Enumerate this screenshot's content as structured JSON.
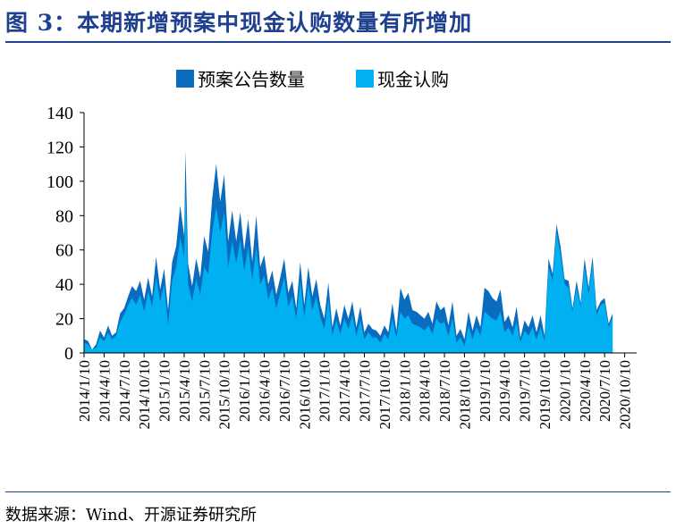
{
  "figure": {
    "title": "图 3：本期新增预案中现金认购数量有所增加",
    "source": "数据来源：Wind、开源证券研究所"
  },
  "colors": {
    "title_blue": "#1f3f8f",
    "series_plan": "#0a6cbf",
    "series_cash": "#00b0f0"
  },
  "chart_data": {
    "type": "area",
    "title": "",
    "xlabel": "",
    "ylabel": "",
    "ylim": [
      0,
      140
    ],
    "yticks": [
      0,
      20,
      40,
      60,
      80,
      100,
      120,
      140
    ],
    "grid": false,
    "legend_position": "top-center",
    "x_tick_labels": [
      "2014/1/10",
      "2014/4/10",
      "2014/7/10",
      "2014/10/10",
      "2015/1/10",
      "2015/4/10",
      "2015/7/10",
      "2015/10/10",
      "2016/1/10",
      "2016/4/10",
      "2016/7/10",
      "2016/10/10",
      "2017/1/10",
      "2017/4/10",
      "2017/7/10",
      "2017/10/10",
      "2018/1/10",
      "2018/4/10",
      "2018/7/10",
      "2018/10/10",
      "2019/1/10",
      "2019/4/10",
      "2019/7/10",
      "2019/10/10",
      "2020/1/10",
      "2020/4/10",
      "2020/7/10",
      "2020/10/10"
    ],
    "series": [
      {
        "name": "预案公告数量",
        "color": "#0a6cbf",
        "points": [
          [
            0,
            8
          ],
          [
            0.3,
            7
          ],
          [
            0.6,
            2
          ],
          [
            0.9,
            5
          ],
          [
            1.2,
            13
          ],
          [
            1.5,
            9
          ],
          [
            1.8,
            16
          ],
          [
            2.1,
            10
          ],
          [
            2.4,
            12
          ],
          [
            2.7,
            23
          ],
          [
            3.0,
            26
          ],
          [
            3.3,
            33
          ],
          [
            3.6,
            39
          ],
          [
            3.9,
            36
          ],
          [
            4.2,
            42
          ],
          [
            4.5,
            31
          ],
          [
            4.8,
            44
          ],
          [
            5.1,
            33
          ],
          [
            5.4,
            56
          ],
          [
            5.7,
            37
          ],
          [
            6.0,
            49
          ],
          [
            6.3,
            25
          ],
          [
            6.6,
            53
          ],
          [
            6.9,
            62
          ],
          [
            7.2,
            86
          ],
          [
            7.5,
            68
          ],
          [
            7.6,
            118
          ],
          [
            7.8,
            52
          ],
          [
            8.1,
            39
          ],
          [
            8.4,
            55
          ],
          [
            8.7,
            44
          ],
          [
            9.0,
            68
          ],
          [
            9.3,
            59
          ],
          [
            9.6,
            90
          ],
          [
            9.9,
            110
          ],
          [
            10.2,
            88
          ],
          [
            10.5,
            104
          ],
          [
            10.8,
            65
          ],
          [
            11.1,
            83
          ],
          [
            11.4,
            65
          ],
          [
            11.7,
            82
          ],
          [
            12.0,
            60
          ],
          [
            12.3,
            78
          ],
          [
            12.6,
            53
          ],
          [
            12.9,
            80
          ],
          [
            13.2,
            50
          ],
          [
            13.5,
            57
          ],
          [
            13.8,
            40
          ],
          [
            14.1,
            48
          ],
          [
            14.4,
            34
          ],
          [
            14.7,
            44
          ],
          [
            15.0,
            55
          ],
          [
            15.3,
            35
          ],
          [
            15.6,
            42
          ],
          [
            15.9,
            26
          ],
          [
            16.2,
            53
          ],
          [
            16.5,
            28
          ],
          [
            16.8,
            50
          ],
          [
            17.1,
            33
          ],
          [
            17.4,
            43
          ],
          [
            17.7,
            28
          ],
          [
            18.0,
            20
          ],
          [
            18.3,
            41
          ],
          [
            18.6,
            15
          ],
          [
            18.9,
            26
          ],
          [
            19.2,
            16
          ],
          [
            19.5,
            28
          ],
          [
            19.8,
            20
          ],
          [
            20.1,
            30
          ],
          [
            20.4,
            15
          ],
          [
            20.7,
            27
          ],
          [
            21.0,
            12
          ],
          [
            21.3,
            17
          ],
          [
            21.6,
            14
          ],
          [
            21.9,
            13
          ],
          [
            22.2,
            10
          ],
          [
            22.5,
            16
          ],
          [
            22.8,
            12
          ],
          [
            23.1,
            29
          ],
          [
            23.4,
            13
          ],
          [
            23.7,
            38
          ],
          [
            24.0,
            31
          ],
          [
            24.3,
            35
          ],
          [
            24.6,
            25
          ],
          [
            24.9,
            24
          ],
          [
            25.2,
            22
          ],
          [
            25.5,
            20
          ],
          [
            25.8,
            24
          ],
          [
            26.1,
            17
          ],
          [
            26.4,
            30
          ],
          [
            26.7,
            25
          ],
          [
            27.0,
            27
          ],
          [
            27.3,
            16
          ],
          [
            27.6,
            30
          ],
          [
            27.9,
            10
          ],
          [
            28.2,
            14
          ],
          [
            28.5,
            8
          ],
          [
            28.8,
            24
          ],
          [
            29.1,
            13
          ],
          [
            29.4,
            22
          ],
          [
            29.7,
            15
          ],
          [
            30.0,
            38
          ],
          [
            30.3,
            36
          ],
          [
            30.6,
            32
          ],
          [
            30.9,
            30
          ],
          [
            31.2,
            37
          ],
          [
            31.5,
            18
          ],
          [
            31.8,
            22
          ],
          [
            32.1,
            15
          ],
          [
            32.4,
            27
          ],
          [
            32.7,
            9
          ],
          [
            33.0,
            19
          ],
          [
            33.3,
            15
          ],
          [
            33.6,
            22
          ],
          [
            33.9,
            12
          ],
          [
            34.2,
            22
          ],
          [
            34.5,
            10
          ],
          [
            34.8,
            55
          ],
          [
            35.1,
            46
          ],
          [
            35.4,
            75
          ],
          [
            35.7,
            62
          ],
          [
            36.0,
            43
          ],
          [
            36.3,
            42
          ],
          [
            36.6,
            26
          ],
          [
            36.9,
            42
          ],
          [
            37.2,
            29
          ],
          [
            37.5,
            55
          ],
          [
            37.8,
            38
          ],
          [
            38.1,
            56
          ],
          [
            38.4,
            25
          ],
          [
            38.7,
            30
          ],
          [
            39.0,
            32
          ],
          [
            39.3,
            17
          ],
          [
            39.6,
            23
          ]
        ]
      },
      {
        "name": "现金认购",
        "color": "#00b0f0",
        "points": [
          [
            0,
            6
          ],
          [
            0.3,
            5
          ],
          [
            0.6,
            2
          ],
          [
            0.9,
            3
          ],
          [
            1.2,
            9
          ],
          [
            1.5,
            7
          ],
          [
            1.8,
            12
          ],
          [
            2.1,
            8
          ],
          [
            2.4,
            10
          ],
          [
            2.7,
            18
          ],
          [
            3.0,
            22
          ],
          [
            3.3,
            28
          ],
          [
            3.6,
            32
          ],
          [
            3.9,
            28
          ],
          [
            4.2,
            34
          ],
          [
            4.5,
            24
          ],
          [
            4.8,
            36
          ],
          [
            5.1,
            27
          ],
          [
            5.4,
            44
          ],
          [
            5.7,
            30
          ],
          [
            6.0,
            40
          ],
          [
            6.3,
            16
          ],
          [
            6.6,
            42
          ],
          [
            6.9,
            50
          ],
          [
            7.2,
            67
          ],
          [
            7.5,
            56
          ],
          [
            7.6,
            96
          ],
          [
            7.8,
            40
          ],
          [
            8.1,
            30
          ],
          [
            8.4,
            43
          ],
          [
            8.7,
            34
          ],
          [
            9.0,
            50
          ],
          [
            9.3,
            46
          ],
          [
            9.6,
            70
          ],
          [
            9.9,
            85
          ],
          [
            10.2,
            70
          ],
          [
            10.5,
            82
          ],
          [
            10.8,
            50
          ],
          [
            11.1,
            65
          ],
          [
            11.4,
            52
          ],
          [
            11.7,
            66
          ],
          [
            12.0,
            48
          ],
          [
            12.3,
            62
          ],
          [
            12.6,
            42
          ],
          [
            12.9,
            62
          ],
          [
            13.2,
            40
          ],
          [
            13.5,
            45
          ],
          [
            13.8,
            31
          ],
          [
            14.1,
            38
          ],
          [
            14.4,
            26
          ],
          [
            14.7,
            35
          ],
          [
            15.0,
            44
          ],
          [
            15.3,
            27
          ],
          [
            15.6,
            33
          ],
          [
            15.9,
            20
          ],
          [
            16.2,
            42
          ],
          [
            16.5,
            21
          ],
          [
            16.8,
            40
          ],
          [
            17.1,
            25
          ],
          [
            17.4,
            33
          ],
          [
            17.7,
            21
          ],
          [
            18.0,
            14
          ],
          [
            18.3,
            31
          ],
          [
            18.6,
            10
          ],
          [
            18.9,
            19
          ],
          [
            19.2,
            11
          ],
          [
            19.5,
            20
          ],
          [
            19.8,
            14
          ],
          [
            20.1,
            22
          ],
          [
            20.4,
            10
          ],
          [
            20.7,
            19
          ],
          [
            21.0,
            8
          ],
          [
            21.3,
            12
          ],
          [
            21.6,
            9
          ],
          [
            21.9,
            9
          ],
          [
            22.2,
            6
          ],
          [
            22.5,
            11
          ],
          [
            22.8,
            8
          ],
          [
            23.1,
            20
          ],
          [
            23.4,
            9
          ],
          [
            23.7,
            24
          ],
          [
            24.0,
            20
          ],
          [
            24.3,
            22
          ],
          [
            24.6,
            17
          ],
          [
            24.9,
            16
          ],
          [
            25.2,
            15
          ],
          [
            25.5,
            13
          ],
          [
            25.8,
            16
          ],
          [
            26.1,
            11
          ],
          [
            26.4,
            20
          ],
          [
            26.7,
            17
          ],
          [
            27.0,
            18
          ],
          [
            27.3,
            10
          ],
          [
            27.6,
            20
          ],
          [
            27.9,
            6
          ],
          [
            28.2,
            9
          ],
          [
            28.5,
            4
          ],
          [
            28.8,
            16
          ],
          [
            29.1,
            8
          ],
          [
            29.4,
            15
          ],
          [
            29.7,
            10
          ],
          [
            30.0,
            24
          ],
          [
            30.3,
            22
          ],
          [
            30.6,
            20
          ],
          [
            30.9,
            19
          ],
          [
            31.2,
            24
          ],
          [
            31.5,
            12
          ],
          [
            31.8,
            15
          ],
          [
            32.1,
            10
          ],
          [
            32.4,
            18
          ],
          [
            32.7,
            6
          ],
          [
            33.0,
            13
          ],
          [
            33.3,
            10
          ],
          [
            33.6,
            15
          ],
          [
            33.9,
            8
          ],
          [
            34.2,
            15
          ],
          [
            34.5,
            7
          ],
          [
            34.8,
            50
          ],
          [
            35.1,
            42
          ],
          [
            35.4,
            70
          ],
          [
            35.7,
            57
          ],
          [
            36.0,
            40
          ],
          [
            36.3,
            38
          ],
          [
            36.6,
            24
          ],
          [
            36.9,
            38
          ],
          [
            37.2,
            27
          ],
          [
            37.5,
            50
          ],
          [
            37.8,
            34
          ],
          [
            38.1,
            52
          ],
          [
            38.4,
            22
          ],
          [
            38.7,
            28
          ],
          [
            39.0,
            29
          ],
          [
            39.3,
            15
          ],
          [
            39.6,
            21
          ]
        ]
      }
    ]
  }
}
